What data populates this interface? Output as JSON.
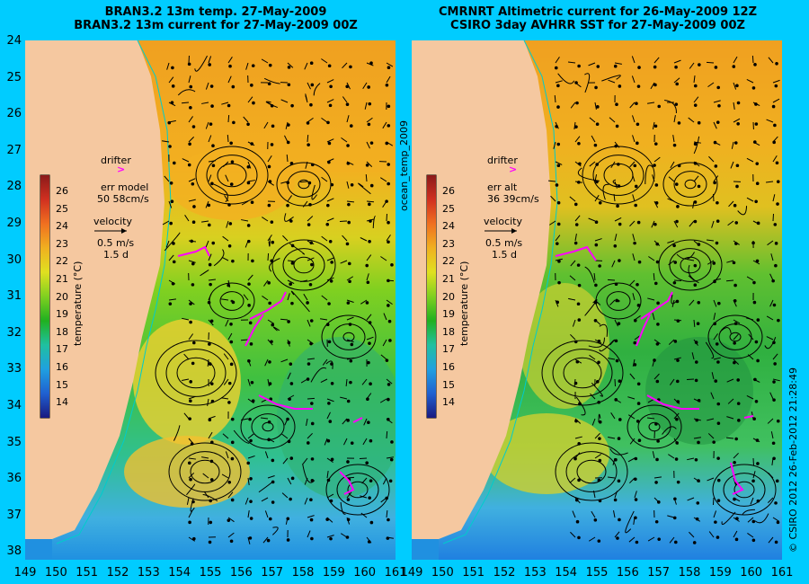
{
  "left": {
    "title1": "BRAN3.2 13m temp. 27-May-2009",
    "title2": "BRAN3.2 13m current for 27-May-2009 00Z",
    "drifter": "drifter",
    "err_label": "err model",
    "err_value": "50 58cm/s",
    "velocity": "velocity",
    "speed": "0.5 m/s",
    "duration": "1.5 d"
  },
  "right": {
    "title1": "CMRNRT Altimetric current for 26-May-2009 12Z",
    "title2": "CSIRO 3day AVHRR SST for 27-May-2009 00Z",
    "drifter": "drifter",
    "err_label": "err alt",
    "err_value": "36 39cm/s",
    "velocity": "velocity",
    "speed": "0.5 m/s",
    "duration": "1.5 d"
  },
  "middle_label": "ocean_temp_2009",
  "colorbar_label": "temperature (°C)",
  "colorbar_ticks": [
    "26",
    "25",
    "24",
    "23",
    "22",
    "21",
    "20",
    "19",
    "18",
    "17",
    "16",
    "15",
    "14"
  ],
  "lat_ticks": [
    "24",
    "25",
    "26",
    "27",
    "28",
    "29",
    "30",
    "31",
    "32",
    "33",
    "34",
    "35",
    "36",
    "37",
    "38"
  ],
  "lon_ticks": [
    "149",
    "150",
    "151",
    "152",
    "153",
    "154",
    "155",
    "156",
    "157",
    "158",
    "159",
    "160",
    "161"
  ],
  "credit": "© CSIRO 2012   26-Feb-2012 21:28:49",
  "colors": {
    "background": "#00ccff",
    "land": "#f5c8a0",
    "drifter": "#ff00ff",
    "coast_line": "#00cccc"
  }
}
